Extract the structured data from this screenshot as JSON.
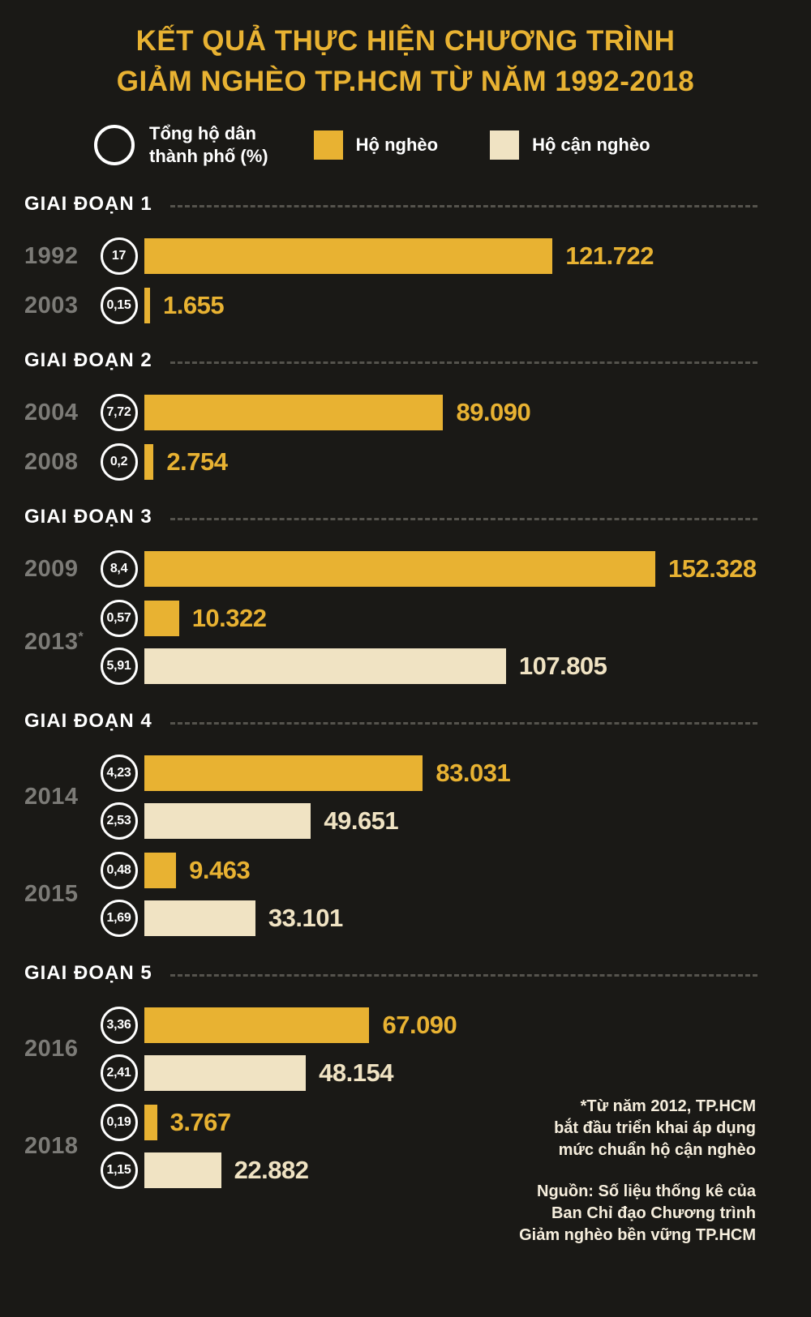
{
  "title": {
    "line1": "KẾT QUẢ THỰC HIỆN CHƯƠNG TRÌNH",
    "line2": "GIẢM NGHÈO TP.HCM TỪ NĂM 1992-2018"
  },
  "legend": {
    "total_label": "Tổng hộ dân\nthành phố (%)",
    "poor_label": "Hộ nghèo",
    "near_poor_label": "Hộ cận nghèo"
  },
  "colors": {
    "background": "#1a1916",
    "gold": "#e8b232",
    "cream": "#f0e3c3",
    "year_gray": "#7c7b77",
    "dash_gray": "#55534d",
    "white": "#ffffff"
  },
  "footnotes": {
    "note": "*Từ năm 2012, TP.HCM\nbắt đầu triển khai áp dụng\nmức chuẩn hộ cận nghèo",
    "source": "Nguồn: Số liệu thống kê của\nBan Chỉ đạo Chương trình\nGiảm nghèo bền vững TP.HCM"
  },
  "chart_data": {
    "type": "bar",
    "orientation": "horizontal",
    "title": "KẾT QUẢ THỰC HIỆN CHƯƠNG TRÌNH GIẢM NGHÈO TP.HCM TỪ NĂM 1992-2018",
    "legend_position": "top",
    "series_names": [
      "Tổng hộ dân thành phố (%)",
      "Hộ nghèo",
      "Hộ cận nghèo"
    ],
    "max_value": 152328,
    "sections": [
      {
        "label": "GIAI ĐOẠN 1",
        "groups": [
          {
            "year": "1992",
            "suffix": "",
            "bars": [
              {
                "series": "poor",
                "percent": "17",
                "value": 121722,
                "value_label": "121.722"
              }
            ]
          },
          {
            "year": "2003",
            "suffix": "",
            "bars": [
              {
                "series": "poor",
                "percent": "0,15",
                "value": 1655,
                "value_label": "1.655"
              }
            ]
          }
        ]
      },
      {
        "label": "GIAI ĐOẠN 2",
        "groups": [
          {
            "year": "2004",
            "suffix": "",
            "bars": [
              {
                "series": "poor",
                "percent": "7,72",
                "value": 89090,
                "value_label": "89.090"
              }
            ]
          },
          {
            "year": "2008",
            "suffix": "",
            "bars": [
              {
                "series": "poor",
                "percent": "0,2",
                "value": 2754,
                "value_label": "2.754"
              }
            ]
          }
        ]
      },
      {
        "label": "GIAI ĐOẠN 3",
        "groups": [
          {
            "year": "2009",
            "suffix": "",
            "bars": [
              {
                "series": "poor",
                "percent": "8,4",
                "value": 152328,
                "value_label": "152.328"
              }
            ]
          },
          {
            "year": "2013",
            "suffix": "*",
            "bars": [
              {
                "series": "poor",
                "percent": "0,57",
                "value": 10322,
                "value_label": "10.322"
              },
              {
                "series": "near_poor",
                "percent": "5,91",
                "value": 107805,
                "value_label": "107.805"
              }
            ]
          }
        ]
      },
      {
        "label": "GIAI ĐOẠN 4",
        "groups": [
          {
            "year": "2014",
            "suffix": "",
            "bars": [
              {
                "series": "poor",
                "percent": "4,23",
                "value": 83031,
                "value_label": "83.031"
              },
              {
                "series": "near_poor",
                "percent": "2,53",
                "value": 49651,
                "value_label": "49.651"
              }
            ]
          },
          {
            "year": "2015",
            "suffix": "",
            "bars": [
              {
                "series": "poor",
                "percent": "0,48",
                "value": 9463,
                "value_label": "9.463"
              },
              {
                "series": "near_poor",
                "percent": "1,69",
                "value": 33101,
                "value_label": "33.101"
              }
            ]
          }
        ]
      },
      {
        "label": "GIAI ĐOẠN 5",
        "groups": [
          {
            "year": "2016",
            "suffix": "",
            "bars": [
              {
                "series": "poor",
                "percent": "3,36",
                "value": 67090,
                "value_label": "67.090"
              },
              {
                "series": "near_poor",
                "percent": "2,41",
                "value": 48154,
                "value_label": "48.154"
              }
            ]
          },
          {
            "year": "2018",
            "suffix": "",
            "bars": [
              {
                "series": "poor",
                "percent": "0,19",
                "value": 3767,
                "value_label": "3.767"
              },
              {
                "series": "near_poor",
                "percent": "1,15",
                "value": 22882,
                "value_label": "22.882"
              }
            ]
          }
        ]
      }
    ]
  }
}
